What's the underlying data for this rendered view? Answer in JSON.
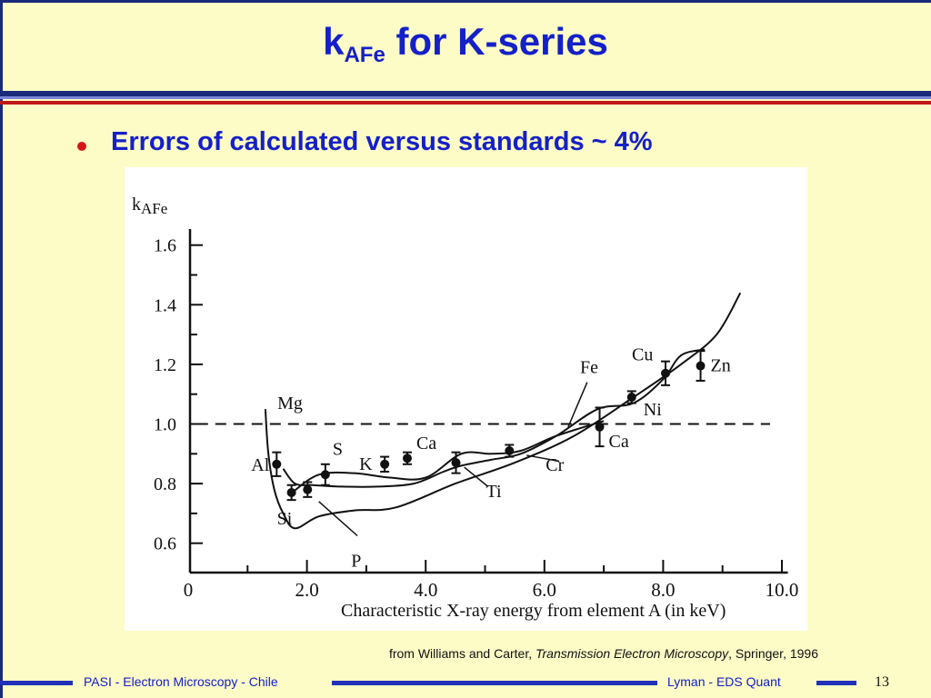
{
  "slide": {
    "title_main": "k",
    "title_sub": "AFe",
    "title_rest": " for K-series",
    "bullet_text": "Errors of calculated versus standards ~ 4%",
    "citation_prefix": "from Williams and Carter, ",
    "citation_italic": "Transmission Electron Microscopy",
    "citation_suffix": ", Springer, 1996",
    "footer_left": "PASI - Electron Microscopy - Chile",
    "footer_right": "Lyman - EDS Quant",
    "page_number": "13",
    "colors": {
      "background": "#fdfbc6",
      "title": "#1420c8",
      "bullet": "#d41818",
      "rule_dark": "#1a2a7a",
      "rule_red": "#c01818"
    }
  },
  "chart_data": {
    "type": "scatter",
    "title": "",
    "ylabel": "k",
    "ylabel_sub": "AFe",
    "xlabel": "Characteristic X-ray energy from element A (in keV)",
    "xlim": [
      0,
      10
    ],
    "ylim": [
      0.55,
      1.65
    ],
    "x_ticks": [
      {
        "value": 0,
        "label": "0"
      },
      {
        "value": 2,
        "label": "2.0"
      },
      {
        "value": 4,
        "label": "4.0"
      },
      {
        "value": 6,
        "label": "6.0"
      },
      {
        "value": 8,
        "label": "8.0"
      },
      {
        "value": 10,
        "label": "10.0"
      }
    ],
    "y_ticks": [
      {
        "value": 0.6,
        "label": "0.6"
      },
      {
        "value": 0.8,
        "label": "0.8"
      },
      {
        "value": 1.0,
        "label": "1.0"
      },
      {
        "value": 1.2,
        "label": "1.2"
      },
      {
        "value": 1.4,
        "label": "1.4"
      },
      {
        "value": 1.6,
        "label": "1.6"
      }
    ],
    "reference_line": 1.0,
    "points": [
      {
        "label": "Al",
        "x": 1.49,
        "y": 0.865,
        "err": 0.04
      },
      {
        "label": "Si",
        "x": 1.74,
        "y": 0.77,
        "err": 0.025
      },
      {
        "label": "P",
        "x": 2.01,
        "y": 0.78,
        "err": 0.025
      },
      {
        "label": "S",
        "x": 2.31,
        "y": 0.83,
        "err": 0.035
      },
      {
        "label": "K",
        "x": 3.31,
        "y": 0.865,
        "err": 0.025
      },
      {
        "label": "Ca",
        "x": 3.69,
        "y": 0.885,
        "err": 0.02
      },
      {
        "label": "Ti",
        "x": 4.51,
        "y": 0.87,
        "err": 0.035
      },
      {
        "label": "Cr",
        "x": 5.41,
        "y": 0.91,
        "err": 0.02
      },
      {
        "label": "Ca",
        "x": 6.93,
        "y": 0.99,
        "err": 0.065
      },
      {
        "label": "Ni",
        "x": 7.47,
        "y": 1.09,
        "err": 0.02
      },
      {
        "label": "Cu",
        "x": 8.04,
        "y": 1.17,
        "err": 0.04
      },
      {
        "label": "Zn",
        "x": 8.63,
        "y": 1.195,
        "err": 0.05
      }
    ],
    "curves": [
      {
        "name": "Mg",
        "points": [
          [
            1.3,
            1.05
          ],
          [
            1.35,
            0.9
          ],
          [
            1.45,
            0.78
          ],
          [
            1.6,
            0.7
          ],
          [
            1.8,
            0.65
          ],
          [
            2.2,
            0.69
          ],
          [
            2.8,
            0.71
          ],
          [
            3.5,
            0.72
          ],
          [
            4.5,
            0.8
          ],
          [
            5.5,
            0.87
          ],
          [
            6.5,
            0.96
          ],
          [
            7.5,
            1.09
          ],
          [
            8.3,
            1.2
          ],
          [
            8.9,
            1.3
          ],
          [
            9.3,
            1.44
          ]
        ]
      },
      {
        "name": "Al",
        "points": [
          [
            1.6,
            0.85
          ],
          [
            1.8,
            0.8
          ],
          [
            2.1,
            0.795
          ],
          [
            2.6,
            0.79
          ],
          [
            3.2,
            0.79
          ],
          [
            3.8,
            0.8
          ],
          [
            4.3,
            0.84
          ],
          [
            4.6,
            0.86
          ],
          [
            5.1,
            0.88
          ],
          [
            5.6,
            0.9
          ],
          [
            6.2,
            0.96
          ],
          [
            6.9,
            1.05
          ],
          [
            7.5,
            1.07
          ],
          [
            8.0,
            1.15
          ],
          [
            8.3,
            1.23
          ],
          [
            8.7,
            1.25
          ]
        ]
      },
      {
        "name": "S",
        "points": [
          [
            1.75,
            0.77
          ],
          [
            2.2,
            0.83
          ],
          [
            2.8,
            0.835
          ],
          [
            3.4,
            0.82
          ],
          [
            4.0,
            0.82
          ],
          [
            4.6,
            0.9
          ],
          [
            5.1,
            0.9
          ],
          [
            5.6,
            0.91
          ],
          [
            6.2,
            0.96
          ],
          [
            7.0,
            1.01
          ]
        ]
      }
    ],
    "annotations": [
      {
        "label": "Mg",
        "x": 1.35,
        "y": 1.05
      },
      {
        "label": "Fe",
        "x": 6.6,
        "y": 1.17
      }
    ]
  }
}
